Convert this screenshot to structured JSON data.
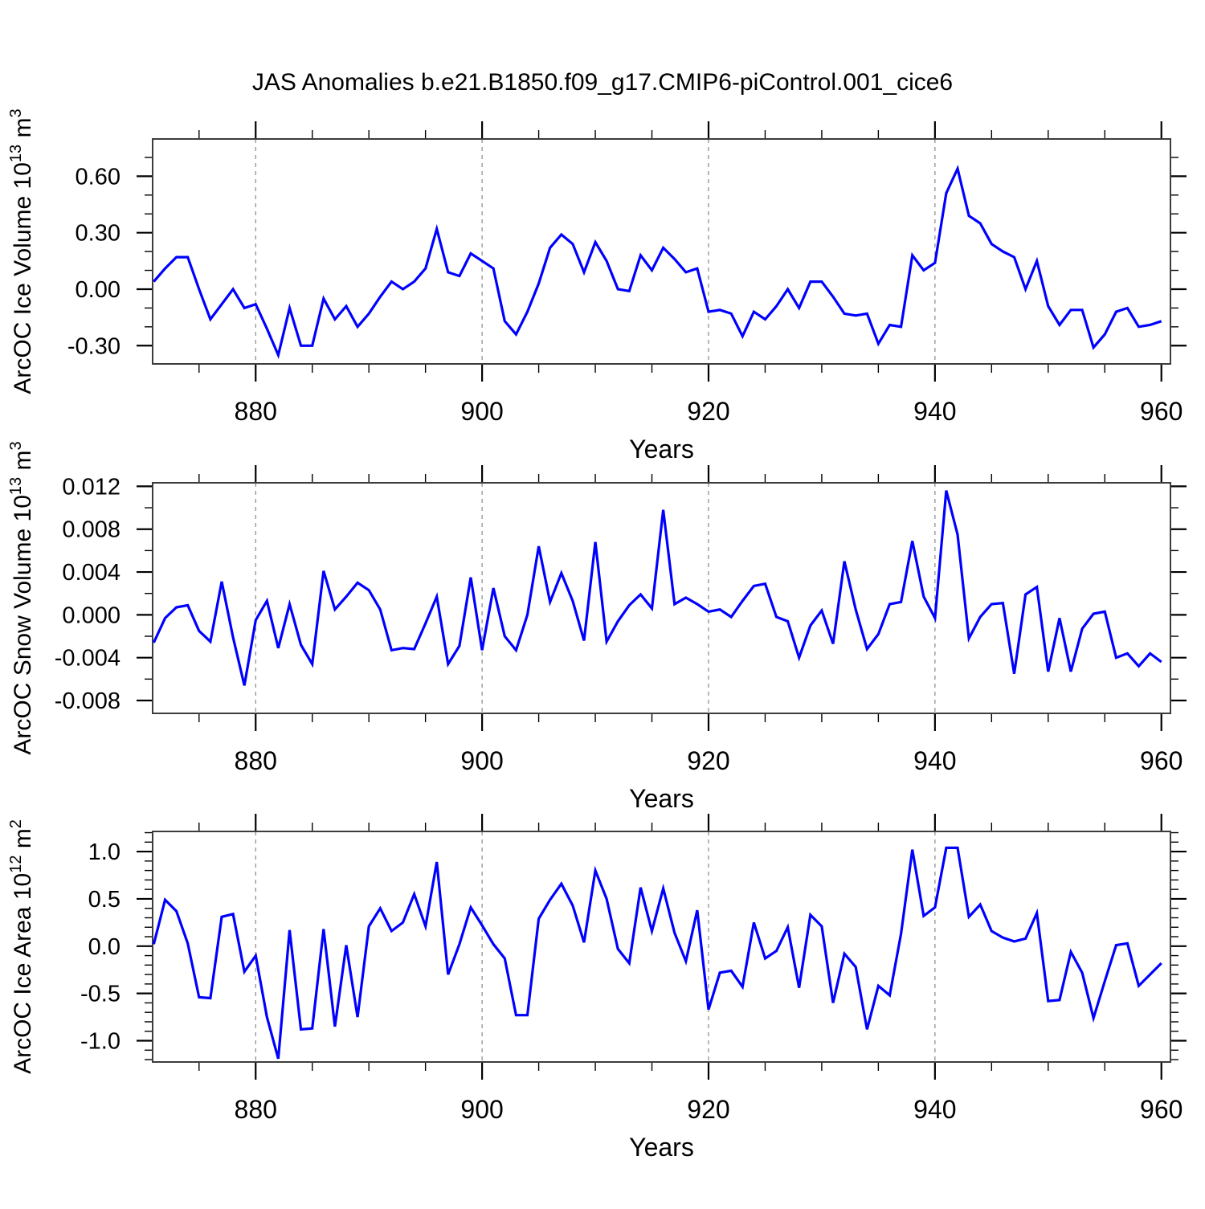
{
  "title": "JAS Anomalies b.e21.B1850.f09_g17.CMIP6-piControl.001_cice6",
  "figure": {
    "background": "#ffffff",
    "line_color": "#0000ff",
    "grid_color": "#888888",
    "frame_color": "#3c3c3c",
    "tick_color": "#000000",
    "text_color": "#000000"
  },
  "x_axis": {
    "label": "Years",
    "range": [
      870.9,
      960.8
    ],
    "major_ticks": [
      880,
      900,
      920,
      940,
      960
    ],
    "major_tick_labels": [
      "880",
      "900",
      "920",
      "940",
      "960"
    ],
    "minor_step": 5,
    "gridlines": [
      880,
      900,
      920,
      940
    ]
  },
  "chart_data": [
    {
      "type": "line",
      "name": "ice-volume",
      "ylabel_parts": [
        {
          "t": "ArcOC Ice Volume 10"
        },
        {
          "t": "13",
          "sup": true
        },
        {
          "t": " m"
        },
        {
          "t": "3",
          "sup": true
        }
      ],
      "xlabel": "Years",
      "legend": "none",
      "grid": "vertical-dashed",
      "x_start": 871,
      "x_step": 1,
      "ylim": [
        -0.397,
        0.798
      ],
      "ytick_values": [
        -0.3,
        0.0,
        0.3,
        0.6
      ],
      "ytick_labels": [
        "-0.30",
        "0.00",
        "0.30",
        "0.60"
      ],
      "y_minor_step": 0.1,
      "values": [
        0.04,
        0.11,
        0.17,
        0.17,
        0.0,
        -0.16,
        -0.08,
        0.0,
        -0.1,
        -0.08,
        -0.21,
        -0.35,
        -0.1,
        -0.3,
        -0.3,
        -0.05,
        -0.16,
        -0.09,
        -0.2,
        -0.13,
        -0.04,
        0.04,
        0.0,
        0.04,
        0.11,
        0.32,
        0.09,
        0.07,
        0.19,
        0.15,
        0.11,
        -0.17,
        -0.24,
        -0.12,
        0.03,
        0.22,
        0.29,
        0.24,
        0.09,
        0.25,
        0.15,
        0.0,
        -0.01,
        0.18,
        0.1,
        0.22,
        0.16,
        0.09,
        0.11,
        -0.12,
        -0.11,
        -0.13,
        -0.25,
        -0.12,
        -0.16,
        -0.09,
        0.0,
        -0.1,
        0.04,
        0.04,
        -0.04,
        -0.13,
        -0.14,
        -0.13,
        -0.29,
        -0.19,
        -0.2,
        0.18,
        0.1,
        0.14,
        0.51,
        0.64,
        0.39,
        0.35,
        0.24,
        0.2,
        0.17,
        0.0,
        0.15,
        -0.09,
        -0.19,
        -0.11,
        -0.11,
        -0.31,
        -0.24,
        -0.12,
        -0.1,
        -0.2,
        -0.19,
        -0.17
      ]
    },
    {
      "type": "line",
      "name": "snow-volume",
      "ylabel_parts": [
        {
          "t": "ArcOC Snow Volume 10"
        },
        {
          "t": "13",
          "sup": true
        },
        {
          "t": " m"
        },
        {
          "t": "3",
          "sup": true
        }
      ],
      "xlabel": "Years",
      "legend": "none",
      "grid": "vertical-dashed",
      "x_start": 871,
      "x_step": 1,
      "ylim": [
        -0.0092,
        0.01233
      ],
      "ytick_values": [
        -0.008,
        -0.004,
        0.0,
        0.004,
        0.008,
        0.012
      ],
      "ytick_labels": [
        "-0.008",
        "-0.004",
        "0.000",
        "0.004",
        "0.008",
        "0.012"
      ],
      "y_minor_step": 0.002,
      "values": [
        -0.0026,
        -0.0003,
        0.0007,
        0.0009,
        -0.0015,
        -0.0025,
        0.0031,
        -0.0021,
        -0.0066,
        -0.0005,
        0.0013,
        -0.0031,
        0.001,
        -0.0028,
        -0.0046,
        0.0041,
        0.0005,
        0.0017,
        0.003,
        0.0023,
        0.0005,
        -0.0033,
        -0.0031,
        -0.0032,
        -0.0008,
        0.0017,
        -0.0046,
        -0.0029,
        0.0035,
        -0.0033,
        0.0025,
        -0.002,
        -0.0033,
        0.0,
        0.0064,
        0.0012,
        0.0039,
        0.0013,
        -0.0024,
        0.0068,
        -0.0025,
        -0.0006,
        0.0009,
        0.0019,
        0.0006,
        0.0098,
        0.001,
        0.0016,
        0.001,
        0.0003,
        0.0005,
        -0.0002,
        0.0013,
        0.0027,
        0.0029,
        -0.0002,
        -0.0006,
        -0.004,
        -0.001,
        0.0004,
        -0.0027,
        0.005,
        0.0005,
        -0.0032,
        -0.0018,
        0.001,
        0.0012,
        0.0069,
        0.0017,
        -0.0003,
        0.0116,
        0.0075,
        -0.0022,
        -0.0002,
        0.001,
        0.0011,
        -0.0055,
        0.0019,
        0.0026,
        -0.0053,
        -0.0003,
        -0.0053,
        -0.0013,
        0.0001,
        0.0003,
        -0.004,
        -0.0036,
        -0.0048,
        -0.0036,
        -0.0044
      ]
    },
    {
      "type": "line",
      "name": "ice-area",
      "ylabel_parts": [
        {
          "t": "ArcOC Ice Area 10"
        },
        {
          "t": "12",
          "sup": true
        },
        {
          "t": " m"
        },
        {
          "t": "2",
          "sup": true
        }
      ],
      "xlabel": "Years",
      "legend": "none",
      "grid": "vertical-dashed",
      "x_start": 871,
      "x_step": 1,
      "ylim": [
        -1.225,
        1.213
      ],
      "ytick_values": [
        -1.0,
        -0.5,
        0.0,
        0.5,
        1.0
      ],
      "ytick_labels": [
        "-1.0",
        "-0.5",
        "0.0",
        "0.5",
        "1.0"
      ],
      "y_minor_step": 0.1,
      "values": [
        0.02,
        0.49,
        0.37,
        0.03,
        -0.54,
        -0.55,
        0.31,
        0.34,
        -0.27,
        -0.1,
        -0.75,
        -1.19,
        0.17,
        -0.88,
        -0.87,
        0.18,
        -0.85,
        0.01,
        -0.75,
        0.21,
        0.4,
        0.16,
        0.25,
        0.55,
        0.21,
        0.89,
        -0.3,
        0.02,
        0.41,
        0.22,
        0.02,
        -0.13,
        -0.73,
        -0.73,
        0.29,
        0.49,
        0.66,
        0.43,
        0.04,
        0.8,
        0.5,
        -0.03,
        -0.18,
        0.62,
        0.16,
        0.61,
        0.14,
        -0.16,
        0.38,
        -0.67,
        -0.28,
        -0.26,
        -0.43,
        0.25,
        -0.13,
        -0.05,
        0.2,
        -0.44,
        0.33,
        0.21,
        -0.6,
        -0.08,
        -0.22,
        -0.88,
        -0.42,
        -0.52,
        0.13,
        1.02,
        0.32,
        0.41,
        1.04,
        1.04,
        0.31,
        0.44,
        0.16,
        0.09,
        0.05,
        0.08,
        0.35,
        -0.58,
        -0.57,
        -0.06,
        -0.28,
        -0.76,
        -0.37,
        0.01,
        0.03,
        -0.42,
        -0.3,
        -0.18
      ]
    }
  ]
}
